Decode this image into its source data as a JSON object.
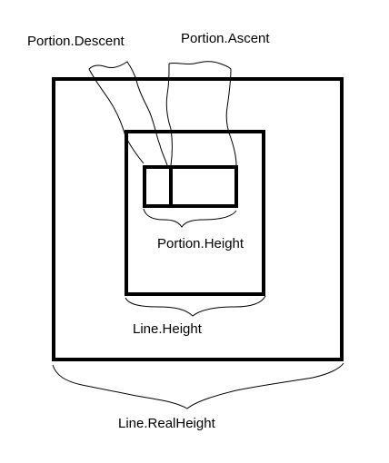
{
  "labels": {
    "portion_descent": "Portion.Descent",
    "portion_ascent": "Portion.Ascent",
    "portion_height": "Portion.Height",
    "line_height": "Line.Height",
    "line_real_height": "Line.RealHeight"
  },
  "colors": {
    "stroke": "#000000",
    "background": "#ffffff"
  }
}
